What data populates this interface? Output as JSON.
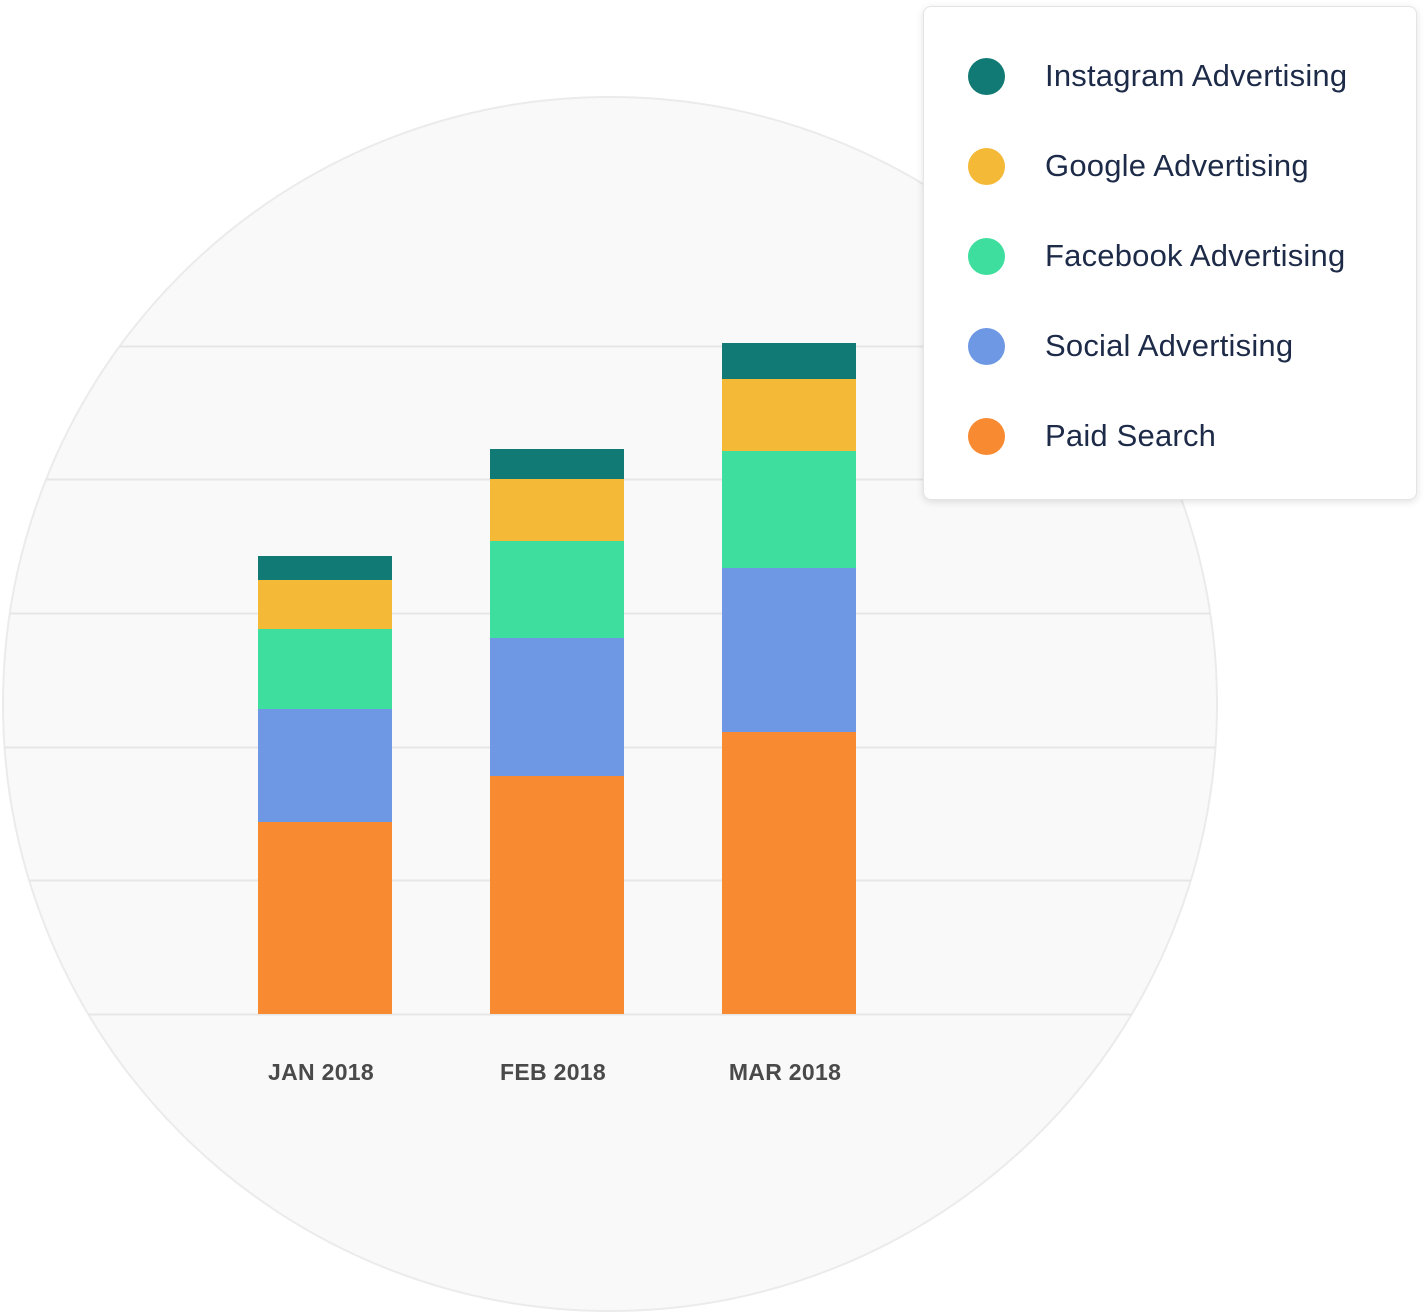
{
  "chart_data": {
    "type": "bar",
    "stacked": true,
    "categories": [
      "JAN 2018",
      "FEB 2018",
      "MAR 2018"
    ],
    "series": [
      {
        "name": "Paid Search",
        "color": "#f88a31",
        "values": [
          144,
          178,
          211
        ]
      },
      {
        "name": "Social Advertising",
        "color": "#6f98e4",
        "values": [
          84,
          103,
          123
        ]
      },
      {
        "name": "Facebook Advertising",
        "color": "#3ede9e",
        "values": [
          60,
          73,
          87
        ]
      },
      {
        "name": "Google Advertising",
        "color": "#f4b937",
        "values": [
          37,
          46,
          54
        ]
      },
      {
        "name": "Instagram Advertising",
        "color": "#127a74",
        "values": [
          18,
          23,
          27
        ]
      }
    ],
    "ylim": [
      0,
      500
    ],
    "gridlines": [
      0,
      100,
      200,
      300,
      400,
      500
    ],
    "grid": true,
    "legend_position": "top-right",
    "legend_order": [
      "Instagram Advertising",
      "Google Advertising",
      "Facebook Advertising",
      "Social Advertising",
      "Paid Search"
    ],
    "title": "",
    "xlabel": "",
    "ylabel": ""
  },
  "colors": {
    "plot_background": "#f9f9f9",
    "gridline": "#e6e6e6",
    "circle_border": "#ebebeb"
  }
}
